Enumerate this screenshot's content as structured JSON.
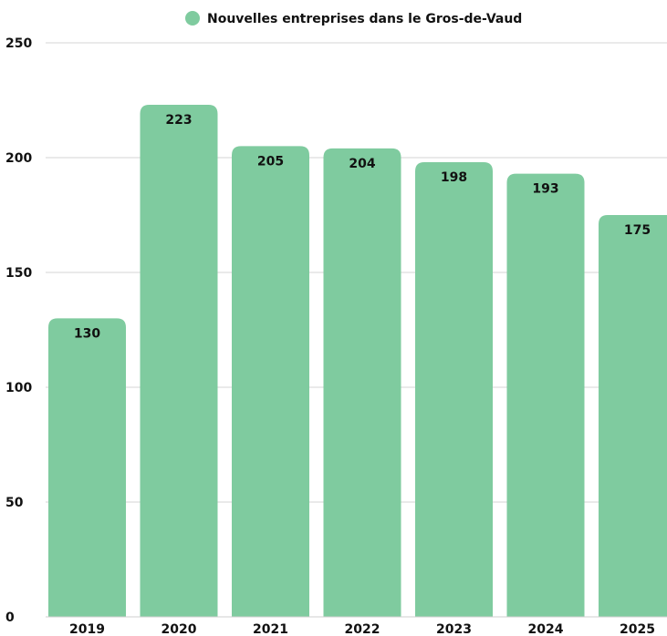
{
  "chart_data": {
    "type": "bar",
    "categories": [
      "2019",
      "2020",
      "2021",
      "2022",
      "2023",
      "2024",
      "2025"
    ],
    "series": [
      {
        "name": "Nouvelles entreprises dans le Gros-de-Vaud",
        "values": [
          130,
          223,
          205,
          204,
          198,
          193,
          175
        ],
        "color": "#7fcb9f"
      }
    ],
    "yticks": [
      "0",
      "50",
      "100",
      "150",
      "200",
      "250"
    ],
    "ylim": [
      0,
      250
    ],
    "grid": true,
    "legend_position": "top-center",
    "data_labels": [
      "130",
      "223",
      "205",
      "204",
      "198",
      "193",
      "175"
    ]
  }
}
